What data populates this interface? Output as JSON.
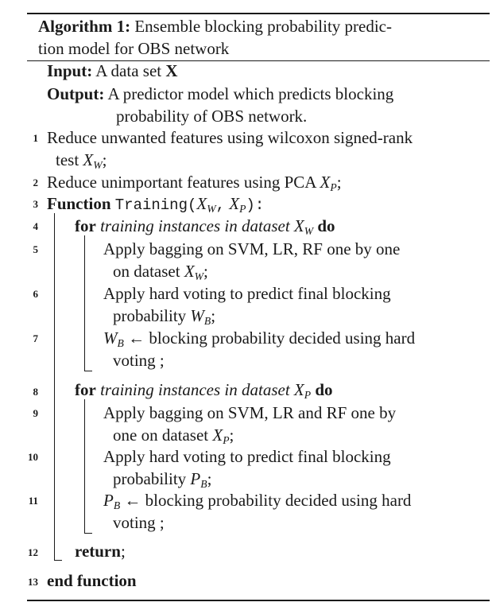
{
  "caption": {
    "label": "Algorithm 1:",
    "title_line1": "Ensemble blocking probability predic-",
    "title_line2": "tion model for OBS network"
  },
  "io": {
    "input_kw": "Input:",
    "input_text": "A data set",
    "input_var": "X",
    "output_kw": "Output:",
    "output_line1": "A predictor model which predicts blocking",
    "output_line2": "probability of OBS network."
  },
  "lines": [
    {
      "num": "1",
      "a": "Reduce unwanted features using wilcoxon signed-rank",
      "b": "test",
      "var": "X",
      "sub": "W",
      "end": ";"
    },
    {
      "num": "2",
      "text": "Reduce unimportant features using PCA",
      "var": "X",
      "sub": "P",
      "end": ";"
    },
    {
      "num": "3",
      "kw": "Function",
      "fn": "Training",
      "open": "(",
      "v1": "X",
      "s1": "W",
      "comma": ",",
      "v2": "X",
      "s2": "P",
      "close": "):"
    },
    {
      "num": "4",
      "kw": "for",
      "it": "training instances in dataset",
      "var": "X",
      "sub": "W",
      "kw2": "do"
    },
    {
      "num": "5",
      "a": "Apply bagging on SVM, LR, RF one by one",
      "b": "on dataset",
      "var": "X",
      "sub": "W",
      "end": ";"
    },
    {
      "num": "6",
      "a": "Apply hard voting to predict final blocking",
      "b": "probability",
      "var": "W",
      "sub": "B",
      "end": ";"
    },
    {
      "num": "7",
      "var": "W",
      "sub": "B",
      "arrow": "←",
      "a": "blocking probability decided using hard",
      "b": "voting ;"
    },
    {
      "num": "8",
      "kw": "for",
      "it": "training instances in dataset",
      "var": "X",
      "sub": "P",
      "kw2": "do"
    },
    {
      "num": "9",
      "a": "Apply bagging on SVM, LR and RF one by",
      "b": "one on dataset",
      "var": "X",
      "sub": "P",
      "end": ";"
    },
    {
      "num": "10",
      "a": "Apply hard voting to predict final blocking",
      "b": "probability",
      "var": "P",
      "sub": "B",
      "end": ";"
    },
    {
      "num": "11",
      "var": "P",
      "sub": "B",
      "arrow": "←",
      "a": "blocking probability decided using hard",
      "b": "voting ;"
    },
    {
      "num": "12",
      "kw": "return",
      "end": ";"
    },
    {
      "num": "13",
      "kw": "end function"
    }
  ]
}
